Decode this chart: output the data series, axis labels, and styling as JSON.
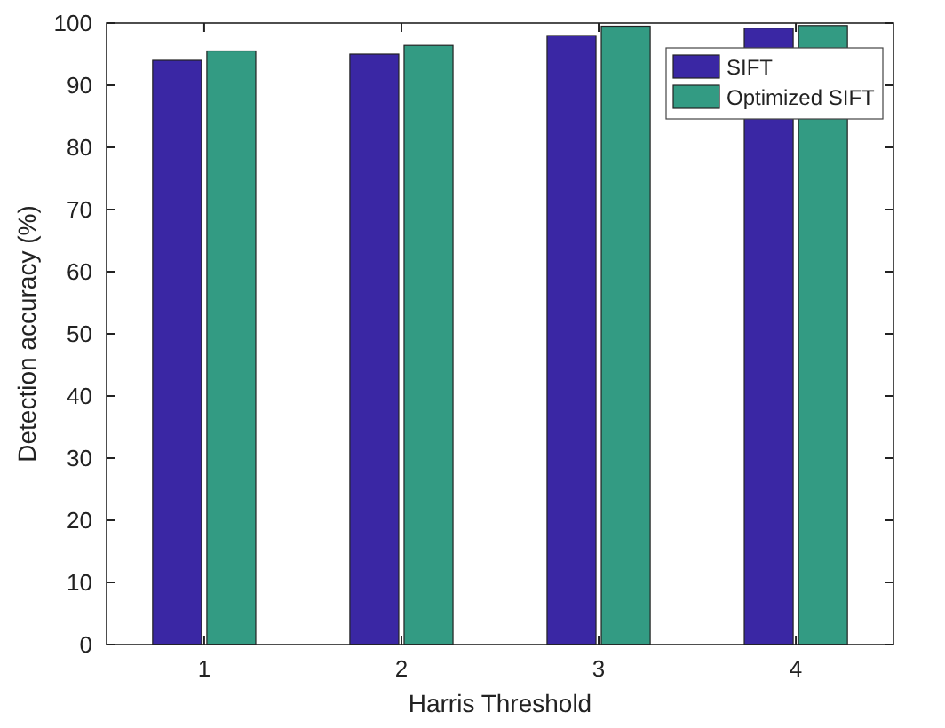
{
  "chart_data": {
    "type": "bar",
    "xlabel": "Harris Threshold",
    "ylabel": "Detection accuracy (%)",
    "categories": [
      "1",
      "2",
      "3",
      "4"
    ],
    "series": [
      {
        "name": "SIFT",
        "color": "#3a27a4",
        "values": [
          94.0,
          95.0,
          98.0,
          99.2
        ]
      },
      {
        "name": "Optimized SIFT",
        "color": "#339b83",
        "values": [
          95.5,
          96.4,
          99.5,
          99.6
        ]
      }
    ],
    "ylim": [
      0,
      100
    ],
    "yticks": [
      0,
      10,
      20,
      30,
      40,
      50,
      60,
      70,
      80,
      90,
      100
    ],
    "grid": false,
    "legend": "top right"
  }
}
